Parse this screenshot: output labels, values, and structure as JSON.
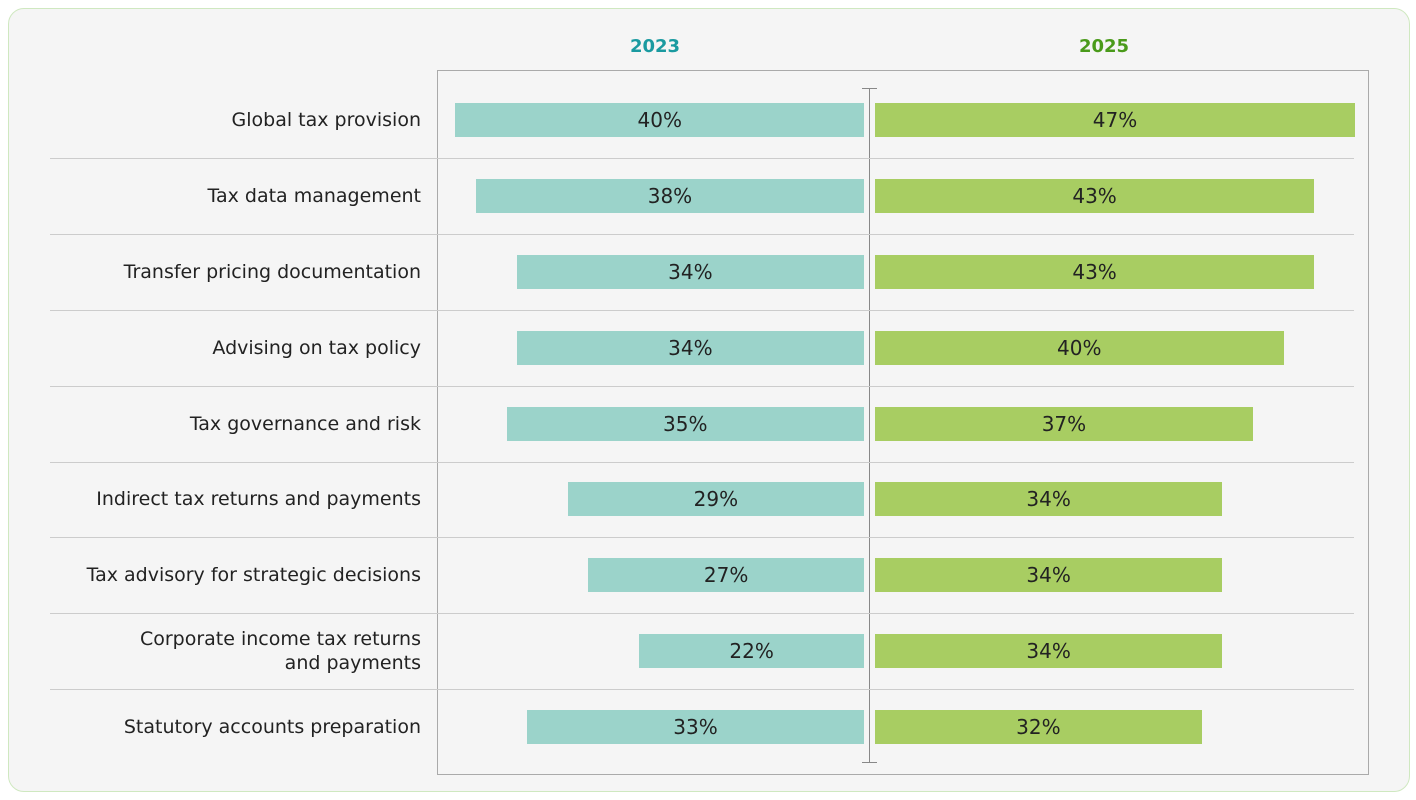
{
  "chart_data": {
    "type": "butterfly",
    "categories": [
      "Global tax provision",
      "Tax data management",
      "Transfer pricing documentation",
      "Advising on tax policy",
      "Tax governance and risk",
      "Indirect tax returns and payments",
      "Tax advisory for strategic decisions",
      "Corporate income tax returns\nand payments",
      "Statutory accounts preparation"
    ],
    "series": [
      {
        "name": "2023",
        "color": "#9bd3ca",
        "title_color": "#1a9aa0",
        "values": [
          40,
          38,
          34,
          34,
          35,
          29,
          27,
          22,
          33
        ],
        "value_labels": [
          "40%",
          "38%",
          "34%",
          "34%",
          "35%",
          "29%",
          "27%",
          "22%",
          "33%"
        ]
      },
      {
        "name": "2025",
        "color": "#a8cd62",
        "title_color": "#4a9a1a",
        "values": [
          47,
          43,
          43,
          40,
          37,
          34,
          34,
          34,
          32
        ],
        "value_labels": [
          "47%",
          "43%",
          "43%",
          "40%",
          "37%",
          "34%",
          "34%",
          "34%",
          "32%"
        ]
      }
    ]
  }
}
